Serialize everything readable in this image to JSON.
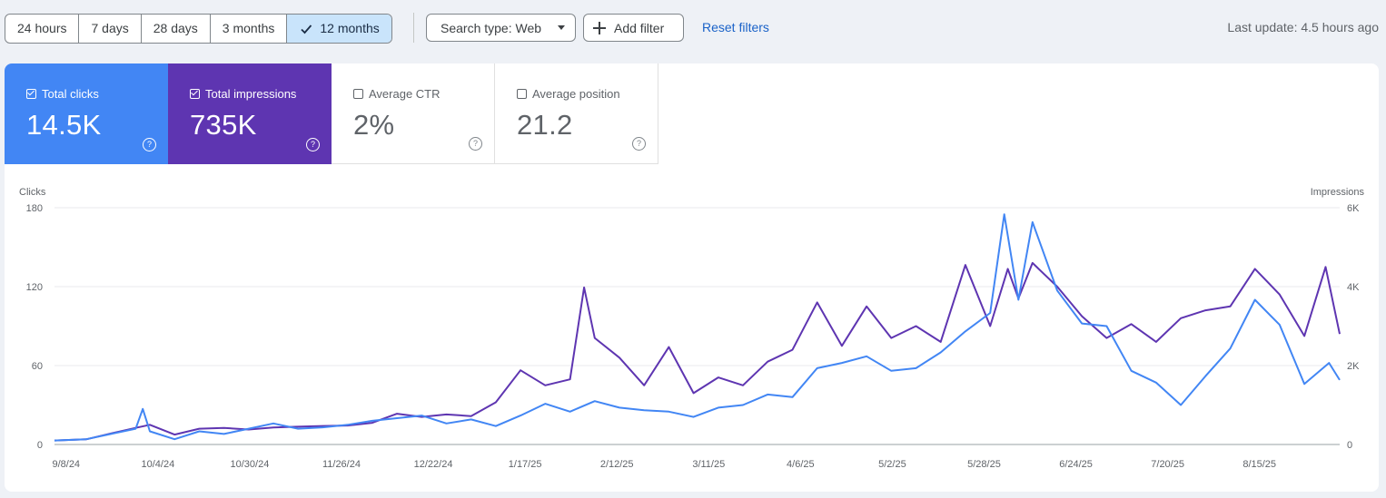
{
  "toolbar": {
    "ranges": [
      {
        "label": "24 hours",
        "selected": false
      },
      {
        "label": "7 days",
        "selected": false
      },
      {
        "label": "28 days",
        "selected": false
      },
      {
        "label": "3 months",
        "selected": false
      },
      {
        "label": "12 months",
        "selected": true
      }
    ],
    "search_type_label": "Search type: Web",
    "add_filter_label": "Add filter",
    "reset_label": "Reset filters",
    "last_update": "Last update: 4.5 hours ago"
  },
  "metrics": {
    "clicks": {
      "label": "Total clicks",
      "value": "14.5K",
      "checked": true,
      "color": "#4286f4"
    },
    "impressions": {
      "label": "Total impressions",
      "value": "735K",
      "checked": true,
      "color": "#5e35b1"
    },
    "ctr": {
      "label": "Average CTR",
      "value": "2%",
      "checked": false
    },
    "position": {
      "label": "Average position",
      "value": "21.2",
      "checked": false
    }
  },
  "chart_data": {
    "type": "line",
    "left_axis_title": "Clicks",
    "right_axis_title": "Impressions",
    "left_ticks": [
      "180",
      "120",
      "60",
      "0"
    ],
    "right_ticks": [
      "6K",
      "4K",
      "2K",
      "0"
    ],
    "ylim_left": [
      0,
      180
    ],
    "ylim_right": [
      0,
      6000
    ],
    "x_ticks": [
      "9/8/24",
      "10/4/24",
      "10/30/24",
      "11/26/24",
      "12/22/24",
      "1/17/25",
      "2/12/25",
      "3/11/25",
      "4/6/25",
      "5/2/25",
      "5/28/25",
      "6/24/25",
      "7/20/25",
      "8/15/25"
    ],
    "x_range": [
      "2024-09-06",
      "2025-09-05"
    ],
    "series": [
      {
        "name": "Total clicks",
        "axis": "left",
        "color": "#4286f4",
        "points": [
          [
            "2024-09-06",
            3
          ],
          [
            "2024-09-15",
            4
          ],
          [
            "2024-09-22",
            8
          ],
          [
            "2024-09-29",
            12
          ],
          [
            "2024-10-01",
            27
          ],
          [
            "2024-10-03",
            10
          ],
          [
            "2024-10-10",
            4
          ],
          [
            "2024-10-17",
            10
          ],
          [
            "2024-10-24",
            8
          ],
          [
            "2024-10-31",
            12
          ],
          [
            "2024-11-07",
            16
          ],
          [
            "2024-11-14",
            12
          ],
          [
            "2024-11-21",
            13
          ],
          [
            "2024-11-28",
            15
          ],
          [
            "2024-12-05",
            18
          ],
          [
            "2024-12-12",
            20
          ],
          [
            "2024-12-19",
            22
          ],
          [
            "2024-12-26",
            16
          ],
          [
            "2025-01-02",
            19
          ],
          [
            "2025-01-09",
            14
          ],
          [
            "2025-01-16",
            22
          ],
          [
            "2025-01-23",
            31
          ],
          [
            "2025-01-30",
            25
          ],
          [
            "2025-02-06",
            33
          ],
          [
            "2025-02-13",
            28
          ],
          [
            "2025-02-20",
            26
          ],
          [
            "2025-02-27",
            25
          ],
          [
            "2025-03-06",
            21
          ],
          [
            "2025-03-13",
            28
          ],
          [
            "2025-03-20",
            30
          ],
          [
            "2025-03-27",
            38
          ],
          [
            "2025-04-03",
            36
          ],
          [
            "2025-04-10",
            58
          ],
          [
            "2025-04-17",
            62
          ],
          [
            "2025-04-24",
            67
          ],
          [
            "2025-05-01",
            56
          ],
          [
            "2025-05-08",
            58
          ],
          [
            "2025-05-15",
            70
          ],
          [
            "2025-05-22",
            86
          ],
          [
            "2025-05-29",
            100
          ],
          [
            "2025-06-02",
            175
          ],
          [
            "2025-06-06",
            110
          ],
          [
            "2025-06-10",
            169
          ],
          [
            "2025-06-17",
            117
          ],
          [
            "2025-06-24",
            92
          ],
          [
            "2025-07-01",
            90
          ],
          [
            "2025-07-08",
            56
          ],
          [
            "2025-07-15",
            47
          ],
          [
            "2025-07-22",
            30
          ],
          [
            "2025-07-29",
            52
          ],
          [
            "2025-08-05",
            73
          ],
          [
            "2025-08-12",
            110
          ],
          [
            "2025-08-19",
            91
          ],
          [
            "2025-08-26",
            46
          ],
          [
            "2025-09-02",
            62
          ],
          [
            "2025-09-05",
            49
          ]
        ]
      },
      {
        "name": "Total impressions",
        "axis": "right",
        "color": "#5e35b1",
        "points": [
          [
            "2024-09-06",
            100
          ],
          [
            "2024-09-15",
            130
          ],
          [
            "2024-09-22",
            280
          ],
          [
            "2024-09-29",
            420
          ],
          [
            "2024-10-03",
            500
          ],
          [
            "2024-10-10",
            250
          ],
          [
            "2024-10-17",
            400
          ],
          [
            "2024-10-24",
            420
          ],
          [
            "2024-10-31",
            380
          ],
          [
            "2024-11-07",
            430
          ],
          [
            "2024-11-14",
            450
          ],
          [
            "2024-11-21",
            470
          ],
          [
            "2024-11-28",
            480
          ],
          [
            "2024-12-05",
            550
          ],
          [
            "2024-12-12",
            780
          ],
          [
            "2024-12-19",
            700
          ],
          [
            "2024-12-26",
            760
          ],
          [
            "2025-01-02",
            720
          ],
          [
            "2025-01-09",
            1070
          ],
          [
            "2025-01-16",
            1880
          ],
          [
            "2025-01-23",
            1500
          ],
          [
            "2025-01-30",
            1650
          ],
          [
            "2025-02-03",
            3980
          ],
          [
            "2025-02-06",
            2700
          ],
          [
            "2025-02-13",
            2200
          ],
          [
            "2025-02-20",
            1500
          ],
          [
            "2025-02-27",
            2470
          ],
          [
            "2025-03-06",
            1300
          ],
          [
            "2025-03-13",
            1700
          ],
          [
            "2025-03-20",
            1500
          ],
          [
            "2025-03-27",
            2100
          ],
          [
            "2025-04-03",
            2400
          ],
          [
            "2025-04-10",
            3600
          ],
          [
            "2025-04-17",
            2500
          ],
          [
            "2025-04-24",
            3500
          ],
          [
            "2025-05-01",
            2700
          ],
          [
            "2025-05-08",
            3000
          ],
          [
            "2025-05-15",
            2600
          ],
          [
            "2025-05-22",
            4550
          ],
          [
            "2025-05-29",
            3000
          ],
          [
            "2025-06-03",
            4450
          ],
          [
            "2025-06-06",
            3700
          ],
          [
            "2025-06-10",
            4600
          ],
          [
            "2025-06-17",
            4000
          ],
          [
            "2025-06-24",
            3250
          ],
          [
            "2025-07-01",
            2700
          ],
          [
            "2025-07-08",
            3050
          ],
          [
            "2025-07-15",
            2600
          ],
          [
            "2025-07-22",
            3200
          ],
          [
            "2025-07-29",
            3400
          ],
          [
            "2025-08-05",
            3500
          ],
          [
            "2025-08-12",
            4450
          ],
          [
            "2025-08-19",
            3800
          ],
          [
            "2025-08-26",
            2750
          ],
          [
            "2025-09-01",
            4500
          ],
          [
            "2025-09-05",
            2800
          ]
        ]
      }
    ]
  }
}
